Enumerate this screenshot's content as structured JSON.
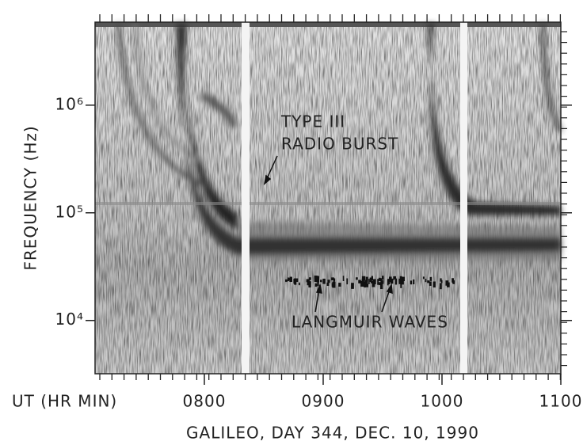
{
  "chart_data": {
    "type": "spectrogram",
    "xlabel": "UT (HR MIN)",
    "ylabel": "FREQUENCY (Hz)",
    "caption": "GALILEO, DAY 344, DEC. 10, 1990",
    "annotations": [
      "TYPE III",
      "RADIO BURST",
      "LANGMUIR WAVES"
    ],
    "xlim": [
      7.08,
      11.0
    ],
    "xticks": [
      {
        "value": 8,
        "label": "0800"
      },
      {
        "value": 9,
        "label": "0900"
      },
      {
        "value": 10,
        "label": "1000"
      },
      {
        "value": 11,
        "label": "1100"
      }
    ],
    "ylim": [
      3200,
      5900000
    ],
    "yticks": [
      {
        "value": 10000,
        "label": "10⁴"
      },
      {
        "value": 100000,
        "label": "10⁵"
      },
      {
        "value": 1000000,
        "label": "10⁶"
      }
    ],
    "log_y": true
  }
}
